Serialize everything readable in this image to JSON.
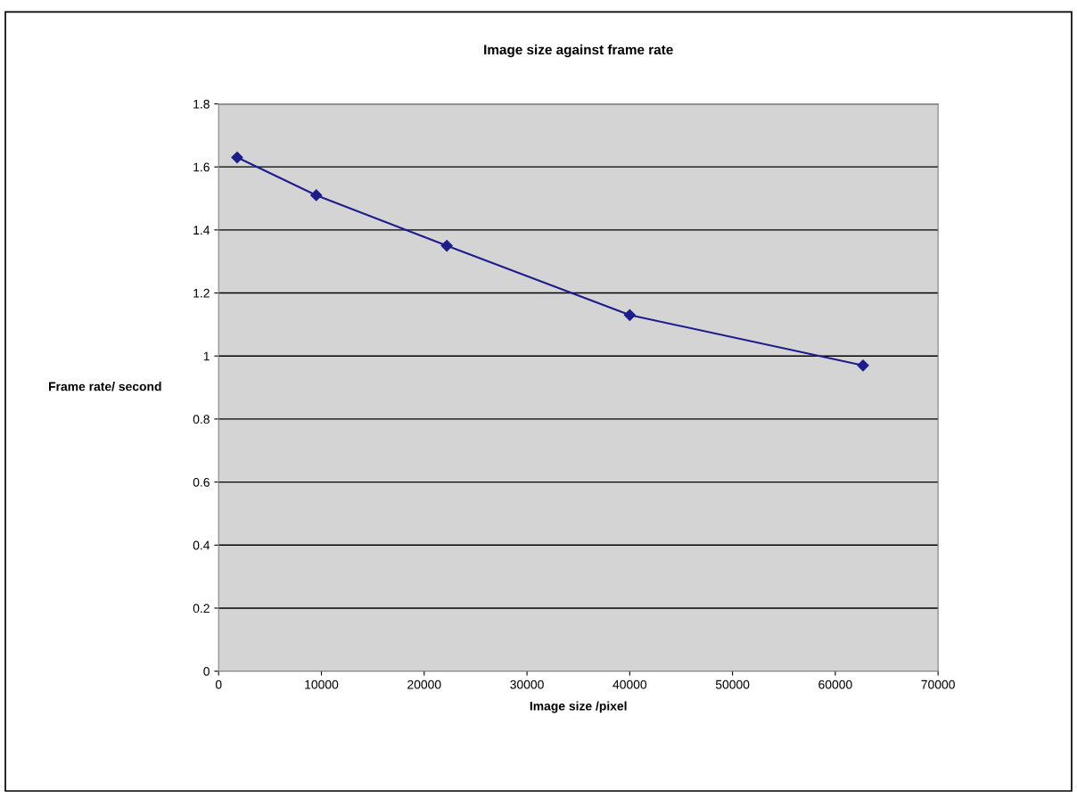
{
  "chart_data": {
    "type": "line",
    "title": "Image size against frame rate",
    "xlabel": "Image size /pixel",
    "ylabel": "Frame rate/ second",
    "x": [
      1800,
      9500,
      22200,
      40000,
      62700
    ],
    "series": [
      {
        "color": "#1c1c8c",
        "values": [
          1.63,
          1.51,
          1.35,
          1.13,
          0.97
        ]
      }
    ],
    "xlim": [
      0,
      70000
    ],
    "xticks": [
      0,
      10000,
      20000,
      30000,
      40000,
      50000,
      60000,
      70000
    ],
    "ylim": [
      0,
      1.8
    ],
    "yticks": [
      0,
      0.2,
      0.4,
      0.6,
      0.8,
      1,
      1.2,
      1.4,
      1.6,
      1.8
    ],
    "grid": "y",
    "marker": "diamond",
    "line_style": "solid",
    "legend": false
  }
}
